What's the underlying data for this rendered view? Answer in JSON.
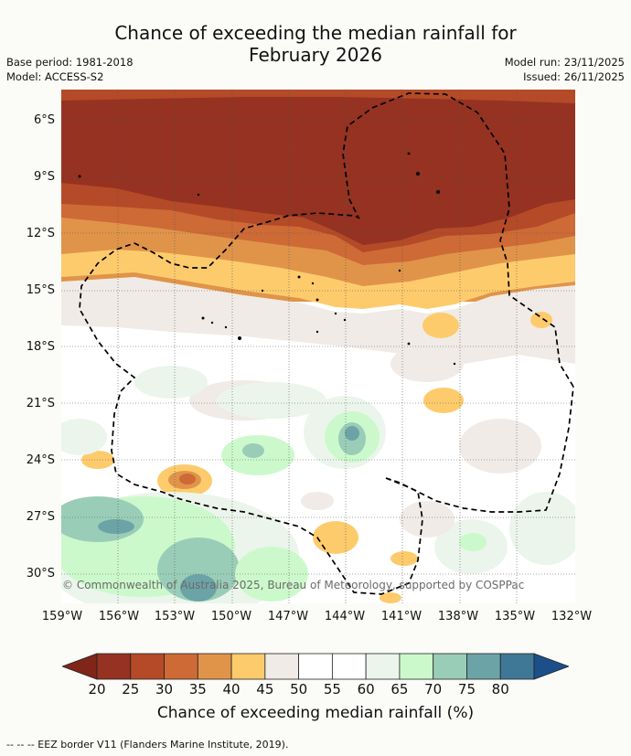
{
  "title_line1": "Chance of exceeding the median rainfall for",
  "title_line2": "February 2026",
  "base_period": "Base period: 1981-2018",
  "model": "Model: ACCESS-S2",
  "model_run": "Model run: 23/11/2025",
  "issued": "Issued: 26/11/2025",
  "y_axis_labels": [
    "6°S",
    "9°S",
    "12°S",
    "15°S",
    "18°S",
    "21°S",
    "24°S",
    "27°S",
    "30°S"
  ],
  "x_axis_labels": [
    "159°W",
    "156°W",
    "153°W",
    "150°W",
    "147°W",
    "144°W",
    "141°W",
    "138°W",
    "135°W",
    "132°W"
  ],
  "copyright": "© Commonwealth of Australia 2025, Bureau of Meteorology, supported by COSPPac",
  "colorbar": {
    "ticks": [
      "20",
      "25",
      "30",
      "35",
      "40",
      "45",
      "50",
      "55",
      "60",
      "65",
      "70",
      "75",
      "80"
    ],
    "colors": [
      "#953221",
      "#b44a27",
      "#cd6a36",
      "#e0944a",
      "#fdcb6c",
      "#f0ebe6",
      "#ffffff",
      "#ffffff",
      "#ebf5eb",
      "#ccf9cb",
      "#9acdb8",
      "#6ca3a6",
      "#3f7896"
    ],
    "low_arrow_color": "#7f2519",
    "high_arrow_color": "#1c4f8a",
    "label": "Chance of exceeding median rainfall (%)"
  },
  "footnote": "--  --  -- EEZ border V11 (Flanders Marine Institute, 2019)."
}
